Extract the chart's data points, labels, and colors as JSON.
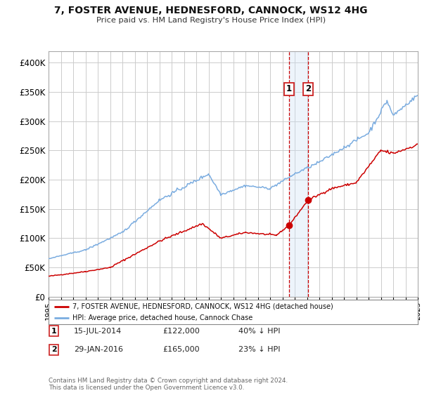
{
  "title": "7, FOSTER AVENUE, HEDNESFORD, CANNOCK, WS12 4HG",
  "subtitle": "Price paid vs. HM Land Registry's House Price Index (HPI)",
  "legend_line1": "7, FOSTER AVENUE, HEDNESFORD, CANNOCK, WS12 4HG (detached house)",
  "legend_line2": "HPI: Average price, detached house, Cannock Chase",
  "annotation1_date": "15-JUL-2014",
  "annotation1_price": "£122,000",
  "annotation1_hpi": "40% ↓ HPI",
  "annotation2_date": "29-JAN-2016",
  "annotation2_price": "£165,000",
  "annotation2_hpi": "23% ↓ HPI",
  "footnote": "Contains HM Land Registry data © Crown copyright and database right 2024.\nThis data is licensed under the Open Government Licence v3.0.",
  "red_color": "#cc0000",
  "blue_color": "#7aace0",
  "vline1_color": "#cc0000",
  "vline2_color": "#cc0000",
  "span_color": "#cce0f5",
  "background_color": "#ffffff",
  "grid_color": "#cccccc",
  "ylim": [
    0,
    420000
  ],
  "yticks": [
    0,
    50000,
    100000,
    150000,
    200000,
    250000,
    300000,
    350000,
    400000
  ],
  "sale1_x": 2014.54,
  "sale1_y": 122000,
  "sale2_x": 2016.08,
  "sale2_y": 165000,
  "xmin": 1995,
  "xmax": 2025
}
